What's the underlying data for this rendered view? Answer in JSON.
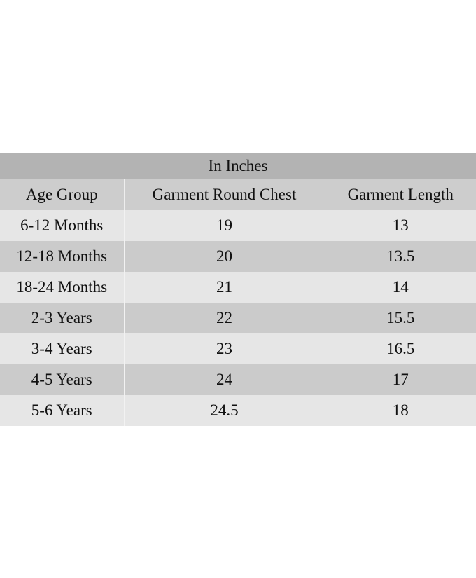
{
  "table": {
    "caption": "In Inches",
    "headers": [
      "Age Group",
      "Garment Round Chest",
      "Garment Length"
    ],
    "rows": [
      [
        "6-12 Months",
        "19",
        "13"
      ],
      [
        "12-18 Months",
        "20",
        "13.5"
      ],
      [
        "18-24 Months",
        "21",
        "14"
      ],
      [
        "2-3 Years",
        "22",
        "15.5"
      ],
      [
        "3-4 Years",
        "23",
        "16.5"
      ],
      [
        "4-5 Years",
        "24",
        "17"
      ],
      [
        "5-6 Years",
        "24.5",
        "18"
      ]
    ]
  },
  "colors": {
    "caption_bg": "#b3b3b3",
    "header_bg": "#cdcdcd",
    "row_light": "#e6e6e6",
    "row_dark": "#cbcbcb"
  }
}
